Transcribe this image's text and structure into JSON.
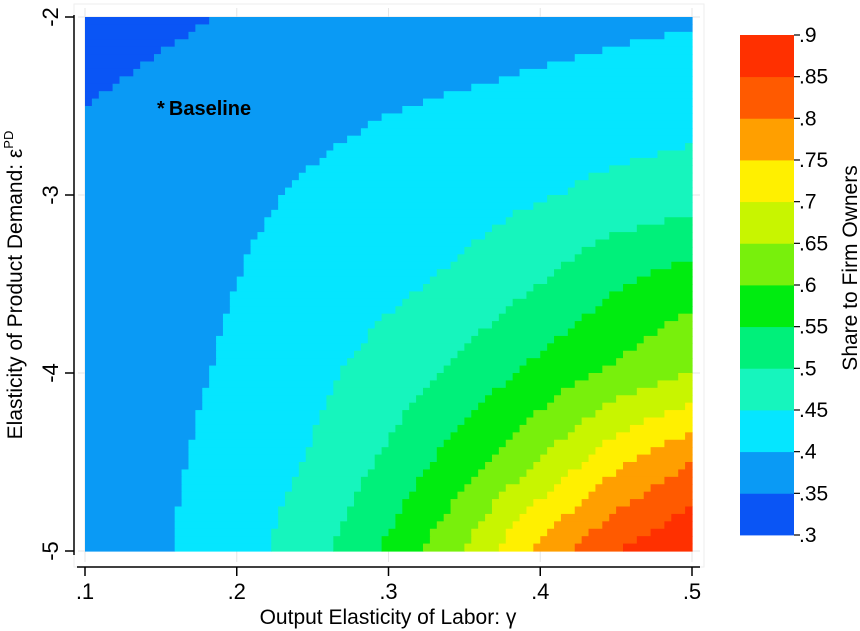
{
  "chart_data": {
    "type": "heatmap",
    "xlabel": "Output Elasticity of Labor: γ",
    "ylabel": "Elasticity of Product Demand: ε",
    "ylabel_superscript": "PD",
    "colorbar_label": "Share to Firm Owners",
    "x_ticks": [
      {
        "value": 0.1,
        "label": ".1"
      },
      {
        "value": 0.2,
        "label": ".2"
      },
      {
        "value": 0.3,
        "label": ".3"
      },
      {
        "value": 0.4,
        "label": ".4"
      },
      {
        "value": 0.5,
        "label": ".5"
      }
    ],
    "y_ticks": [
      {
        "value": -2,
        "label": "-2"
      },
      {
        "value": -3,
        "label": "-3"
      },
      {
        "value": -4,
        "label": "-4"
      },
      {
        "value": -5,
        "label": "-5"
      }
    ],
    "xlim": [
      0.1,
      0.5
    ],
    "ylim": [
      -5,
      -2
    ],
    "levels": [
      {
        "value": 0.3,
        "label": ".3"
      },
      {
        "value": 0.35,
        "label": ".35"
      },
      {
        "value": 0.4,
        "label": ".4"
      },
      {
        "value": 0.45,
        "label": ".45"
      },
      {
        "value": 0.5,
        "label": ".5"
      },
      {
        "value": 0.55,
        "label": ".55"
      },
      {
        "value": 0.6,
        "label": ".6"
      },
      {
        "value": 0.65,
        "label": ".65"
      },
      {
        "value": 0.7,
        "label": ".7"
      },
      {
        "value": 0.75,
        "label": ".75"
      },
      {
        "value": 0.8,
        "label": ".8"
      },
      {
        "value": 0.85,
        "label": ".85"
      },
      {
        "value": 0.9,
        "label": ".9"
      }
    ],
    "band_colors": [
      "#0a55f5",
      "#0a9af5",
      "#05e6ff",
      "#16f5bd",
      "#00f07a",
      "#00ec10",
      "#78f00c",
      "#c8f500",
      "#fff000",
      "#ff9f00",
      "#ff5a00",
      "#ff3000"
    ],
    "annotation": {
      "text": "Baseline",
      "marker": "*",
      "x": 0.15,
      "y": -2.55
    },
    "surface": {
      "x": [
        0.1,
        0.15,
        0.2,
        0.25,
        0.3,
        0.35,
        0.4,
        0.45,
        0.5
      ],
      "y": [
        -2.0,
        -2.5,
        -3.0,
        -3.5,
        -4.0,
        -4.5,
        -5.0
      ],
      "z": [
        [
          0.325,
          0.34,
          0.355,
          0.365,
          0.37,
          0.378,
          0.385,
          0.39,
          0.395
        ],
        [
          0.35,
          0.365,
          0.38,
          0.39,
          0.398,
          0.405,
          0.412,
          0.42,
          0.428
        ],
        [
          0.358,
          0.375,
          0.392,
          0.405,
          0.418,
          0.43,
          0.445,
          0.465,
          0.478
        ],
        [
          0.362,
          0.382,
          0.4,
          0.42,
          0.44,
          0.46,
          0.5,
          0.545,
          0.58
        ],
        [
          0.365,
          0.385,
          0.408,
          0.438,
          0.47,
          0.515,
          0.565,
          0.61,
          0.65
        ],
        [
          0.368,
          0.39,
          0.42,
          0.455,
          0.51,
          0.58,
          0.65,
          0.74,
          0.8
        ],
        [
          0.372,
          0.395,
          0.43,
          0.48,
          0.56,
          0.65,
          0.77,
          0.85,
          0.9
        ]
      ]
    }
  }
}
